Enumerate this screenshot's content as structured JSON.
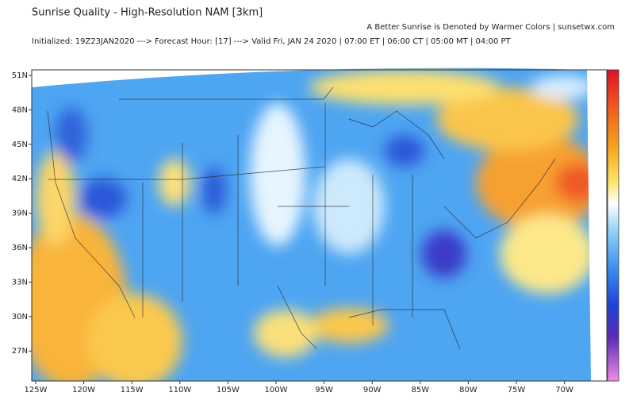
{
  "header": {
    "title": "Sunrise Quality - High-Resolution NAM [3km]",
    "note": "A Better Sunrise is Denoted by Warmer Colors | sunsetwx.com",
    "subtitle": "Initialized: 19Z23JAN2020 ---> Forecast Hour: [17] ---> Valid Fri, JAN 24 2020 | 07:00 ET | 06:00 CT | 05:00 MT | 04:00 PT"
  },
  "map": {
    "lat_labels": [
      "51N",
      "48N",
      "45N",
      "42N",
      "39N",
      "36N",
      "33N",
      "30N",
      "27N"
    ],
    "lon_labels": [
      "125W",
      "120W",
      "115W",
      "110W",
      "105W",
      "100W",
      "95W",
      "90W",
      "85W",
      "80W",
      "75W",
      "70W"
    ]
  }
}
